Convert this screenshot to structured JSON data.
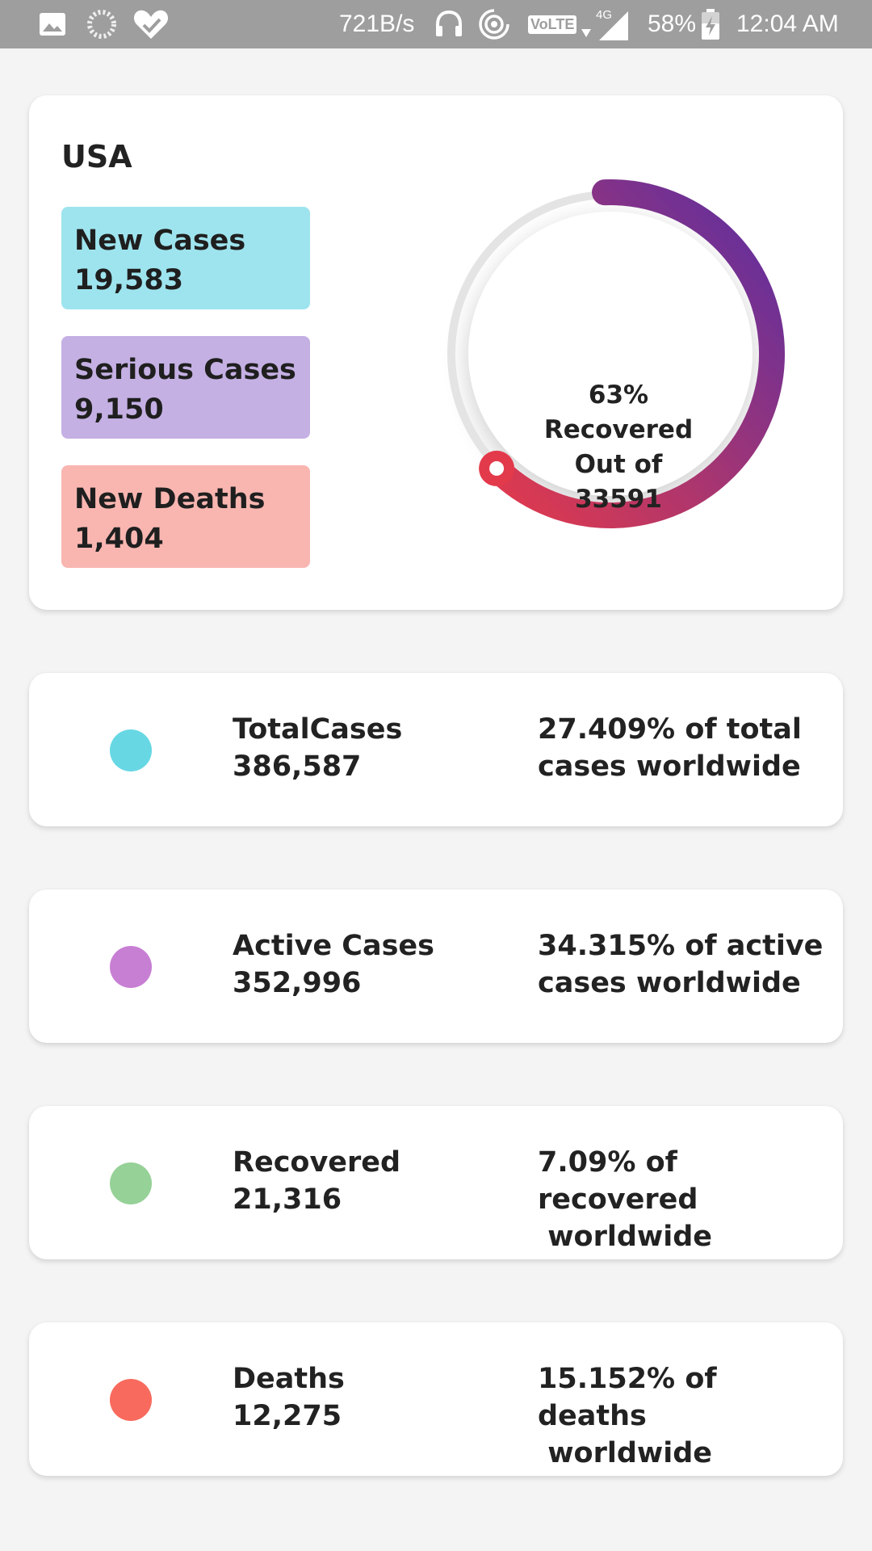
{
  "status_bar": {
    "speed": "721B/s",
    "volte": "VoLTE",
    "network": "4G",
    "battery": "58%",
    "time": "12:04 AM",
    "icons": [
      "image-icon",
      "loading-icon",
      "heart-check-icon",
      "headphones-icon",
      "hotspot-icon",
      "volte-icon",
      "signal-icon",
      "battery-charging-icon"
    ]
  },
  "country_card": {
    "country": "USA",
    "new_cases": {
      "label": "New Cases",
      "value": "19,583",
      "color": "#9ee4ee"
    },
    "serious_cases": {
      "label": "Serious Cases",
      "value": "9,150",
      "color": "#c4b0e3"
    },
    "new_deaths": {
      "label": "New Deaths",
      "value": "1,404",
      "color": "#f9b6b1"
    },
    "recovery": {
      "percent_text": "63%",
      "line1": "Recovered",
      "line2": "Out of",
      "total": "33591",
      "fraction": 0.63,
      "gradient_start": "#e33a4b",
      "gradient_end": "#5a2fa2"
    }
  },
  "summary": [
    {
      "label": "TotalCases",
      "value": "386,587",
      "pct": "27.409% of total\ncases worldwide",
      "color": "#67d7e4"
    },
    {
      "label": "Active Cases",
      "value": "352,996",
      "pct": "34.315% of active\ncases worldwide",
      "color": "#c77fd3"
    },
    {
      "label": "Recovered",
      "value": "21,316",
      "pct": "7.09% of recovered\n worldwide",
      "color": "#96d197"
    },
    {
      "label": "Deaths",
      "value": "12,275",
      "pct": "15.152% of deaths\n worldwide",
      "color": "#f86a5d"
    }
  ]
}
